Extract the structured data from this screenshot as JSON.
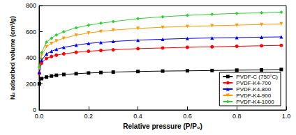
{
  "chart_data": {
    "type": "line",
    "x_label": "Relative pressure (P/P₀)",
    "y_label": "N₂ adsorbed volume (cm³/g)",
    "x": [
      0.001,
      0.01,
      0.03,
      0.05,
      0.07,
      0.1,
      0.15,
      0.2,
      0.25,
      0.3,
      0.4,
      0.5,
      0.6,
      0.7,
      0.8,
      0.9,
      0.98
    ],
    "series": [
      {
        "name": "PVDF-C (750°C)",
        "color": "#000000",
        "marker": "square",
        "values": [
          200,
          240,
          252,
          260,
          266,
          272,
          278,
          283,
          287,
          290,
          295,
          298,
          300,
          302,
          305,
          307,
          310
        ]
      },
      {
        "name": "PVDF-K4-700",
        "color": "#ff0000",
        "marker": "circle",
        "values": [
          280,
          360,
          395,
          410,
          420,
          430,
          442,
          450,
          456,
          461,
          470,
          475,
          480,
          484,
          488,
          492,
          495
        ]
      },
      {
        "name": "PVDF-K4-800",
        "color": "#0000ff",
        "marker": "triangle",
        "values": [
          290,
          380,
          430,
          450,
          465,
          480,
          497,
          510,
          518,
          525,
          535,
          542,
          548,
          552,
          555,
          558,
          560
        ]
      },
      {
        "name": "PVDF-K4-900",
        "color": "#ff9900",
        "marker": "triangle-down",
        "values": [
          320,
          420,
          485,
          510,
          530,
          550,
          573,
          590,
          602,
          612,
          625,
          634,
          640,
          645,
          650,
          655,
          660
        ]
      },
      {
        "name": "PVDF-K4-1000",
        "color": "#33cc33",
        "marker": "diamond",
        "values": [
          330,
          440,
          520,
          550,
          575,
          600,
          630,
          650,
          665,
          677,
          700,
          714,
          725,
          733,
          740,
          745,
          750
        ]
      }
    ],
    "xlim": [
      0,
      1.0
    ],
    "xticks": [
      {
        "value": 0,
        "label": "0.0"
      },
      {
        "value": 0.2,
        "label": "0.2"
      },
      {
        "value": 0.4,
        "label": "0.4"
      },
      {
        "value": 0.6,
        "label": "0.6"
      },
      {
        "value": 0.8,
        "label": "0.8"
      },
      {
        "value": 1.0,
        "label": "1.0"
      }
    ],
    "ylim": [
      0,
      800
    ],
    "yticks": [
      0,
      200,
      400,
      600,
      800
    ],
    "legend": "lower right",
    "grid": false
  }
}
